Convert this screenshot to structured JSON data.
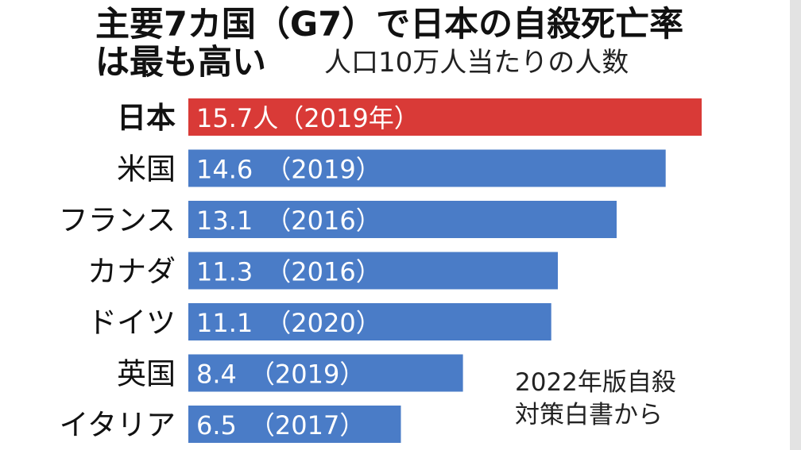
{
  "chart_data": {
    "type": "bar",
    "orientation": "horizontal",
    "title_lines": [
      "主要7カ国（G7）で日本の自殺死亡率",
      "は最も高い"
    ],
    "subtitle": "人口10万人当たりの人数",
    "categories": [
      "日本",
      "米国",
      "フランス",
      "カナダ",
      "ドイツ",
      "英国",
      "イタリア"
    ],
    "values": [
      15.7,
      14.6,
      13.1,
      11.3,
      11.1,
      8.4,
      6.5
    ],
    "bar_labels": [
      "15.7人（2019年）",
      "14.6　（2019）",
      "13.1　（2016）",
      "11.3　（2016）",
      "11.1　（2020）",
      "8.4　（2019）",
      "6.5　（2017）"
    ],
    "highlight_category": "日本",
    "source_lines": [
      "2022年版自殺",
      "対策白書から"
    ],
    "xlim": [
      0,
      15.7
    ],
    "grid": false,
    "legend": "none"
  },
  "colors": {
    "highlight": "#d93a37",
    "bar": "#4a7cc7",
    "background": "#ffffff",
    "text": "#111111"
  }
}
